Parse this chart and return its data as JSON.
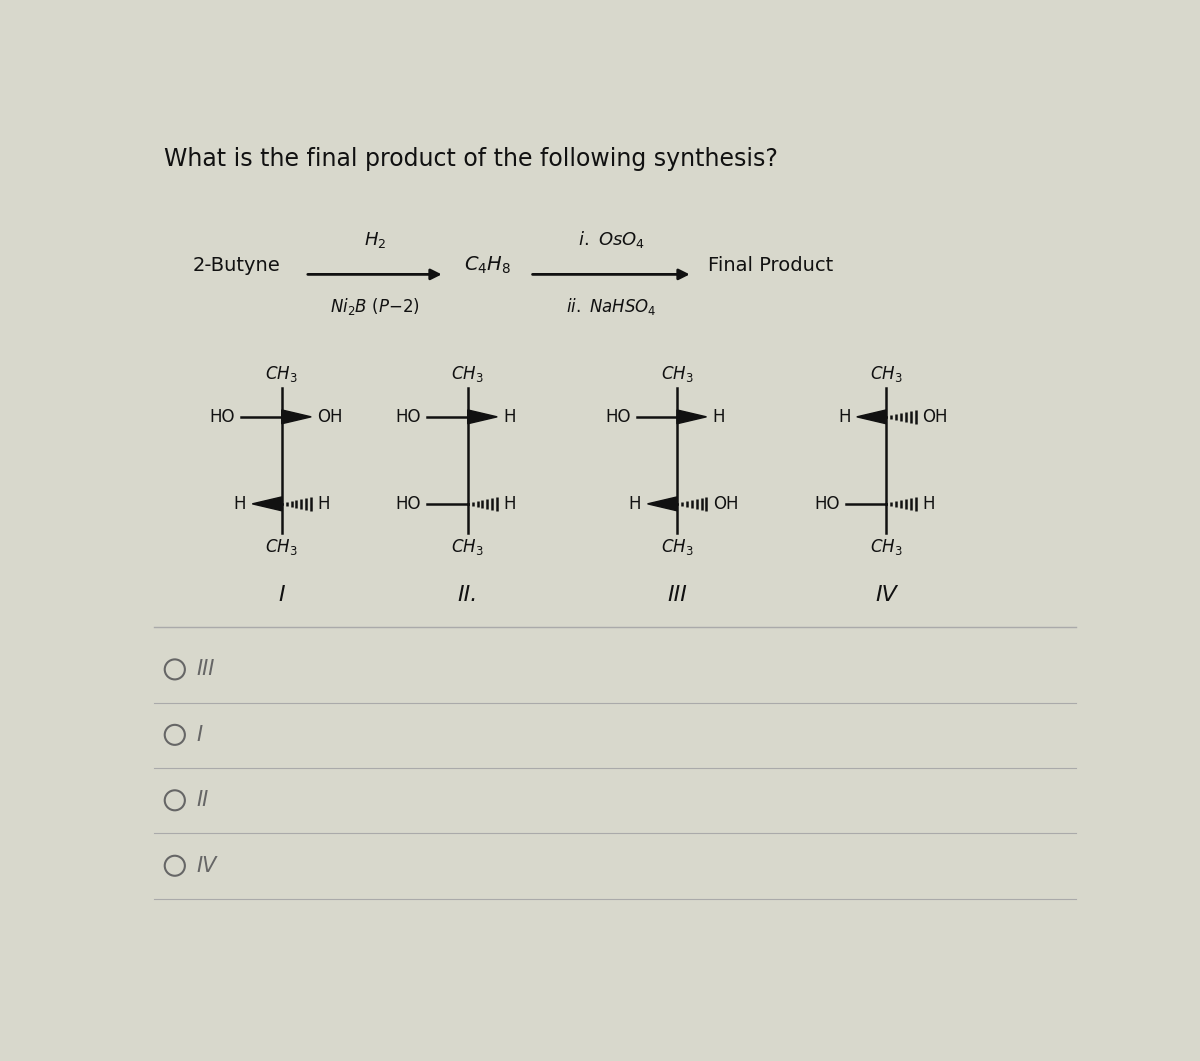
{
  "bg_color": "#d8d8cc",
  "title": "What is the final product of the following synthesis?",
  "title_fontsize": 17,
  "text_color": "#111111",
  "reaction_left": "2-Butyne",
  "reaction_arrow1_top": "H₂",
  "reaction_arrow1_bot": "Ni₂B (P-2)",
  "reaction_mid": "C₄H₈",
  "reaction_arrow2_top": "i. OsO₄",
  "reaction_arrow2_bot": "ii. NaHSO₄",
  "reaction_right": "Final Product",
  "roman_labels": [
    "I",
    "II.",
    "III",
    "IV"
  ],
  "options": [
    "III",
    "I",
    "II",
    "IV"
  ],
  "option_color": "#666666",
  "option_fontsize": 15,
  "sep_color": "#aaaaaa"
}
